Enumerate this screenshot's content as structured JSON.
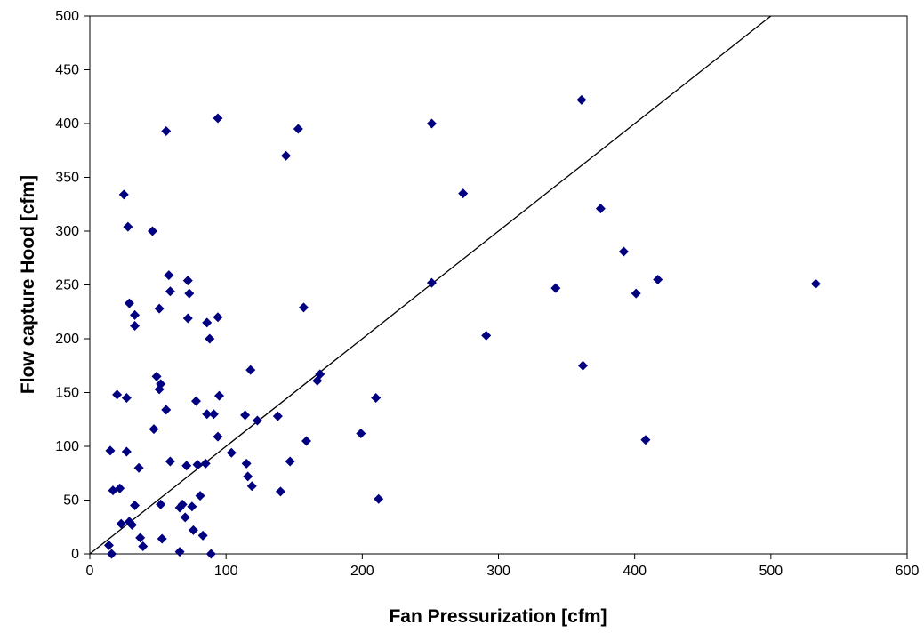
{
  "chart_data": {
    "type": "scatter",
    "title": "",
    "xlabel": "Fan Pressurization [cfm]",
    "ylabel": "Flow capture Hood [cfm]",
    "xlim": [
      0,
      600
    ],
    "ylim": [
      0,
      500
    ],
    "xticks": [
      0,
      100,
      200,
      300,
      400,
      500,
      600
    ],
    "yticks": [
      0,
      50,
      100,
      150,
      200,
      250,
      300,
      350,
      400,
      450,
      500
    ],
    "grid": false,
    "legend": "none",
    "marker": "diamond",
    "marker_color": "#000080",
    "reference_line": {
      "type": "y=x",
      "color": "#000000"
    },
    "series": [
      {
        "points": [
          [
            14,
            8
          ],
          [
            16,
            0
          ],
          [
            15,
            96
          ],
          [
            17,
            59
          ],
          [
            20,
            148
          ],
          [
            22,
            61
          ],
          [
            23,
            28
          ],
          [
            25,
            334
          ],
          [
            27,
            145
          ],
          [
            27,
            95
          ],
          [
            28,
            304
          ],
          [
            29,
            30
          ],
          [
            29,
            233
          ],
          [
            31,
            27
          ],
          [
            33,
            45
          ],
          [
            33,
            222
          ],
          [
            33,
            212
          ],
          [
            36,
            80
          ],
          [
            37,
            15
          ],
          [
            39,
            7
          ],
          [
            46,
            300
          ],
          [
            47,
            116
          ],
          [
            49,
            165
          ],
          [
            51,
            153
          ],
          [
            51,
            228
          ],
          [
            52,
            158
          ],
          [
            52,
            46
          ],
          [
            53,
            14
          ],
          [
            56,
            393
          ],
          [
            56,
            134
          ],
          [
            58,
            259
          ],
          [
            59,
            244
          ],
          [
            59,
            86
          ],
          [
            66,
            43
          ],
          [
            66,
            2
          ],
          [
            68,
            46
          ],
          [
            70,
            34
          ],
          [
            71,
            82
          ],
          [
            72,
            254
          ],
          [
            72,
            219
          ],
          [
            73,
            242
          ],
          [
            75,
            44
          ],
          [
            76,
            22
          ],
          [
            78,
            142
          ],
          [
            79,
            83
          ],
          [
            81,
            54
          ],
          [
            83,
            17
          ],
          [
            85,
            84
          ],
          [
            86,
            215
          ],
          [
            86,
            130
          ],
          [
            88,
            200
          ],
          [
            89,
            0
          ],
          [
            91,
            130
          ],
          [
            94,
            405
          ],
          [
            94,
            220
          ],
          [
            94,
            109
          ],
          [
            95,
            147
          ],
          [
            104,
            94
          ],
          [
            114,
            129
          ],
          [
            115,
            84
          ],
          [
            116,
            72
          ],
          [
            118,
            171
          ],
          [
            119,
            63
          ],
          [
            123,
            124
          ],
          [
            138,
            128
          ],
          [
            140,
            58
          ],
          [
            144,
            370
          ],
          [
            147,
            86
          ],
          [
            153,
            395
          ],
          [
            157,
            229
          ],
          [
            159,
            105
          ],
          [
            167,
            161
          ],
          [
            169,
            167
          ],
          [
            199,
            112
          ],
          [
            210,
            145
          ],
          [
            212,
            51
          ],
          [
            251,
            400
          ],
          [
            251,
            252
          ],
          [
            274,
            335
          ],
          [
            291,
            203
          ],
          [
            342,
            247
          ],
          [
            361,
            422
          ],
          [
            362,
            175
          ],
          [
            375,
            321
          ],
          [
            392,
            281
          ],
          [
            401,
            242
          ],
          [
            408,
            106
          ],
          [
            417,
            255
          ],
          [
            533,
            251
          ]
        ]
      }
    ]
  }
}
